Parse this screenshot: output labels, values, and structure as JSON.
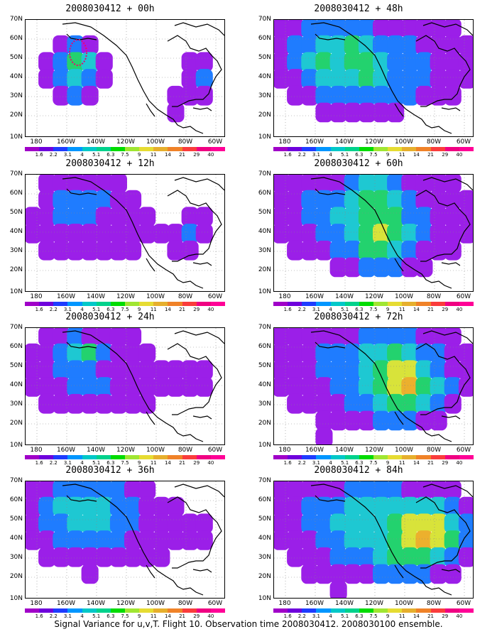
{
  "panels": [
    {
      "title": "2008030412 + 00h",
      "field": [
        [
          0,
          0,
          0,
          0,
          0,
          0,
          0,
          0,
          0,
          0,
          0,
          0,
          0,
          0
        ],
        [
          0,
          0,
          1,
          2,
          1,
          0,
          0,
          0,
          0,
          0,
          0,
          0,
          0,
          0
        ],
        [
          0,
          1,
          2,
          4,
          3,
          1,
          0,
          0,
          0,
          0,
          0,
          1,
          1,
          0
        ],
        [
          0,
          1,
          2,
          3,
          2,
          1,
          0,
          0,
          0,
          0,
          0,
          1,
          2,
          0
        ],
        [
          0,
          0,
          1,
          2,
          1,
          0,
          0,
          0,
          0,
          0,
          1,
          1,
          1,
          0
        ],
        [
          0,
          0,
          0,
          0,
          0,
          0,
          0,
          0,
          0,
          0,
          1,
          0,
          0,
          0
        ],
        [
          0,
          0,
          0,
          0,
          0,
          0,
          0,
          0,
          0,
          0,
          0,
          0,
          0,
          0
        ]
      ],
      "outline": true
    },
    {
      "title": "2008030412 + 48h",
      "field": [
        [
          1,
          1,
          2,
          2,
          2,
          2,
          2,
          1,
          1,
          1,
          1,
          1,
          1,
          0
        ],
        [
          1,
          2,
          2,
          3,
          3,
          4,
          3,
          2,
          2,
          2,
          1,
          1,
          1,
          1
        ],
        [
          1,
          2,
          3,
          4,
          3,
          4,
          4,
          3,
          2,
          2,
          2,
          1,
          1,
          1
        ],
        [
          1,
          1,
          2,
          3,
          3,
          3,
          4,
          3,
          2,
          2,
          2,
          1,
          1,
          1
        ],
        [
          0,
          1,
          1,
          2,
          2,
          2,
          2,
          2,
          2,
          2,
          1,
          1,
          1,
          0
        ],
        [
          0,
          0,
          0,
          1,
          1,
          1,
          1,
          1,
          1,
          0,
          0,
          0,
          0,
          0
        ],
        [
          0,
          0,
          0,
          0,
          0,
          0,
          0,
          0,
          0,
          0,
          0,
          0,
          0,
          0
        ]
      ]
    },
    {
      "title": "2008030412 + 12h",
      "field": [
        [
          0,
          1,
          1,
          1,
          1,
          1,
          1,
          0,
          0,
          0,
          0,
          0,
          0,
          0
        ],
        [
          0,
          1,
          2,
          2,
          2,
          2,
          1,
          1,
          0,
          0,
          0,
          0,
          0,
          0
        ],
        [
          1,
          1,
          2,
          2,
          2,
          1,
          1,
          1,
          1,
          0,
          0,
          1,
          1,
          0
        ],
        [
          1,
          1,
          1,
          1,
          1,
          1,
          1,
          1,
          1,
          1,
          1,
          2,
          1,
          0
        ],
        [
          0,
          1,
          1,
          1,
          1,
          1,
          1,
          1,
          0,
          0,
          1,
          1,
          0,
          0
        ],
        [
          0,
          0,
          0,
          0,
          0,
          0,
          0,
          0,
          0,
          0,
          0,
          0,
          0,
          0
        ],
        [
          0,
          0,
          0,
          0,
          0,
          0,
          0,
          0,
          0,
          0,
          0,
          0,
          0,
          0
        ]
      ]
    },
    {
      "title": "2008030412 + 60h",
      "field": [
        [
          1,
          1,
          1,
          1,
          1,
          2,
          3,
          3,
          2,
          1,
          1,
          1,
          1,
          0
        ],
        [
          1,
          1,
          2,
          2,
          2,
          3,
          4,
          4,
          3,
          2,
          1,
          1,
          1,
          1
        ],
        [
          1,
          1,
          2,
          2,
          3,
          3,
          4,
          4,
          4,
          2,
          2,
          1,
          1,
          1
        ],
        [
          1,
          1,
          1,
          2,
          2,
          3,
          4,
          5,
          4,
          3,
          2,
          1,
          1,
          1
        ],
        [
          0,
          1,
          1,
          1,
          2,
          2,
          4,
          4,
          3,
          2,
          1,
          1,
          1,
          0
        ],
        [
          0,
          0,
          0,
          0,
          1,
          1,
          2,
          2,
          2,
          1,
          1,
          0,
          0,
          0
        ],
        [
          0,
          0,
          0,
          0,
          0,
          0,
          0,
          0,
          0,
          0,
          0,
          0,
          0,
          0
        ]
      ]
    },
    {
      "title": "2008030412 + 24h",
      "field": [
        [
          0,
          1,
          1,
          2,
          1,
          1,
          1,
          1,
          0,
          0,
          0,
          0,
          0,
          0
        ],
        [
          1,
          1,
          2,
          3,
          4,
          2,
          1,
          1,
          1,
          0,
          0,
          0,
          0,
          0
        ],
        [
          1,
          1,
          2,
          2,
          2,
          1,
          1,
          1,
          1,
          1,
          1,
          1,
          1,
          0
        ],
        [
          1,
          1,
          1,
          2,
          2,
          2,
          1,
          1,
          1,
          1,
          1,
          1,
          1,
          0
        ],
        [
          0,
          1,
          1,
          1,
          1,
          1,
          1,
          1,
          1,
          0,
          0,
          0,
          0,
          0
        ],
        [
          0,
          0,
          0,
          0,
          0,
          0,
          0,
          0,
          0,
          0,
          0,
          0,
          0,
          0
        ],
        [
          0,
          0,
          0,
          0,
          0,
          0,
          0,
          0,
          0,
          0,
          0,
          0,
          0,
          0
        ]
      ]
    },
    {
      "title": "2008030412 + 72h",
      "field": [
        [
          1,
          1,
          1,
          1,
          1,
          1,
          2,
          2,
          2,
          2,
          1,
          1,
          1,
          0
        ],
        [
          1,
          1,
          1,
          2,
          2,
          2,
          3,
          3,
          4,
          3,
          2,
          2,
          1,
          1
        ],
        [
          1,
          1,
          1,
          2,
          2,
          2,
          3,
          4,
          5,
          5,
          3,
          2,
          1,
          1
        ],
        [
          1,
          1,
          1,
          1,
          2,
          2,
          3,
          4,
          5,
          6,
          4,
          3,
          2,
          1
        ],
        [
          0,
          1,
          1,
          1,
          1,
          2,
          2,
          3,
          4,
          4,
          3,
          2,
          1,
          0
        ],
        [
          0,
          0,
          0,
          1,
          1,
          1,
          1,
          2,
          2,
          2,
          1,
          1,
          0,
          0
        ],
        [
          0,
          0,
          0,
          1,
          0,
          0,
          0,
          0,
          0,
          0,
          0,
          0,
          0,
          0
        ]
      ]
    },
    {
      "title": "2008030412 + 36h",
      "field": [
        [
          1,
          1,
          2,
          2,
          2,
          2,
          2,
          1,
          1,
          0,
          0,
          0,
          0,
          0
        ],
        [
          1,
          2,
          3,
          3,
          3,
          3,
          2,
          2,
          1,
          1,
          1,
          0,
          0,
          0
        ],
        [
          1,
          2,
          2,
          3,
          3,
          3,
          2,
          2,
          1,
          1,
          1,
          1,
          1,
          0
        ],
        [
          1,
          1,
          2,
          2,
          2,
          2,
          2,
          1,
          1,
          1,
          1,
          1,
          1,
          0
        ],
        [
          0,
          1,
          1,
          1,
          1,
          1,
          1,
          1,
          1,
          1,
          0,
          0,
          0,
          0
        ],
        [
          0,
          0,
          0,
          0,
          1,
          0,
          0,
          0,
          0,
          0,
          0,
          0,
          0,
          0
        ],
        [
          0,
          0,
          0,
          0,
          0,
          0,
          0,
          0,
          0,
          0,
          0,
          0,
          0,
          0
        ]
      ]
    },
    {
      "title": "2008030412 + 84h",
      "field": [
        [
          1,
          1,
          1,
          1,
          1,
          2,
          2,
          2,
          2,
          1,
          1,
          1,
          1,
          0
        ],
        [
          1,
          1,
          2,
          2,
          2,
          3,
          3,
          3,
          3,
          3,
          3,
          3,
          2,
          1
        ],
        [
          1,
          1,
          2,
          2,
          3,
          3,
          3,
          3,
          4,
          5,
          5,
          5,
          3,
          2
        ],
        [
          1,
          1,
          1,
          2,
          2,
          3,
          3,
          3,
          4,
          5,
          6,
          5,
          4,
          2
        ],
        [
          0,
          1,
          1,
          1,
          2,
          2,
          2,
          3,
          4,
          4,
          4,
          3,
          2,
          1
        ],
        [
          0,
          0,
          1,
          1,
          1,
          1,
          1,
          2,
          2,
          2,
          2,
          1,
          1,
          0
        ],
        [
          0,
          0,
          0,
          0,
          1,
          0,
          0,
          0,
          0,
          0,
          0,
          0,
          0,
          0
        ]
      ]
    }
  ],
  "lat_labels": [
    "70N",
    "60N",
    "50N",
    "40N",
    "30N",
    "20N",
    "10N"
  ],
  "lon_labels": [
    "180",
    "160W",
    "140W",
    "120W",
    "100W",
    "80W",
    "60W"
  ],
  "colorbar": {
    "labels": [
      "1.6",
      "2.2",
      "3.1",
      "4",
      "5.1",
      "6.3",
      "7.5",
      "9",
      "11",
      "14",
      "21",
      "29",
      "40"
    ],
    "colors": [
      "#a000c8",
      "#6e00dc",
      "#1e3cff",
      "#0096ff",
      "#00c8c8",
      "#00d28c",
      "#00dc00",
      "#a0e632",
      "#e6dc32",
      "#e6af2d",
      "#f08228",
      "#fa3c3c",
      "#f00082"
    ]
  },
  "levels_colors": [
    "#ffffff",
    "#9b1fe8",
    "#1f7cff",
    "#1ec8d2",
    "#23d26e",
    "#d8e33a",
    "#ecb02d"
  ],
  "caption": "Signal Variance for u,v,T. Flight 10. Observation time 2008030412. 2008030100 ensemble."
}
